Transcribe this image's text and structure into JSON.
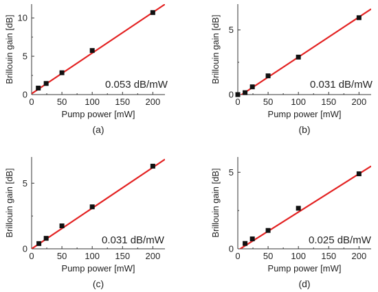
{
  "chart_data": [
    {
      "type": "scatter",
      "panel_label": "(a)",
      "xlabel": "Pump power [mW]",
      "ylabel": "Brillouin gain [dB]",
      "annotation": "0.053 dB/mW",
      "xlim": [
        0,
        220
      ],
      "ylim": [
        0,
        11.8
      ],
      "xticks": [
        0,
        50,
        100,
        150,
        200
      ],
      "yticks": [
        0,
        5,
        10
      ],
      "x": [
        11,
        24,
        50,
        100,
        200
      ],
      "y": [
        0.85,
        1.45,
        2.85,
        5.75,
        10.7
      ],
      "fit": {
        "slope": 0.053,
        "intercept": 0.12
      },
      "colors": {
        "fit": "#e32222",
        "marker": "#111111"
      }
    },
    {
      "type": "scatter",
      "panel_label": "(b)",
      "xlabel": "Pump power [mW]",
      "ylabel": "Brillouin gain [dB]",
      "annotation": "0.031 dB/mW",
      "xlim": [
        0,
        220
      ],
      "ylim": [
        0,
        7
      ],
      "xticks": [
        0,
        50,
        100,
        150,
        200
      ],
      "yticks": [
        0,
        5
      ],
      "x": [
        0,
        12,
        24,
        50,
        100,
        200
      ],
      "y": [
        0.0,
        0.15,
        0.6,
        1.45,
        2.9,
        5.95
      ],
      "fit": {
        "slope": 0.031,
        "intercept": -0.2
      },
      "colors": {
        "fit": "#e32222",
        "marker": "#111111"
      }
    },
    {
      "type": "scatter",
      "panel_label": "(c)",
      "xlabel": "Pump power [mW]",
      "ylabel": "Brillouin gain [dB]",
      "annotation": "0.031 dB/mW",
      "xlim": [
        0,
        220
      ],
      "ylim": [
        0,
        7
      ],
      "xticks": [
        0,
        50,
        100,
        150,
        200
      ],
      "yticks": [
        0,
        5
      ],
      "x": [
        12,
        24,
        50,
        100,
        200
      ],
      "y": [
        0.4,
        0.8,
        1.75,
        3.2,
        6.3
      ],
      "fit": {
        "slope": 0.031,
        "intercept": 0.0
      },
      "colors": {
        "fit": "#e32222",
        "marker": "#111111"
      }
    },
    {
      "type": "scatter",
      "panel_label": "(d)",
      "xlabel": "Pump power [mW]",
      "ylabel": "Brillouin gain [dB]",
      "annotation": "0.025 dB/mW",
      "xlim": [
        0,
        220
      ],
      "ylim": [
        0,
        6
      ],
      "xticks": [
        0,
        50,
        100,
        150,
        200
      ],
      "yticks": [
        0,
        5
      ],
      "x": [
        12,
        24,
        50,
        100,
        200
      ],
      "y": [
        0.35,
        0.65,
        1.2,
        2.65,
        4.9
      ],
      "fit": {
        "slope": 0.025,
        "intercept": -0.1
      },
      "colors": {
        "fit": "#e32222",
        "marker": "#111111"
      }
    }
  ]
}
